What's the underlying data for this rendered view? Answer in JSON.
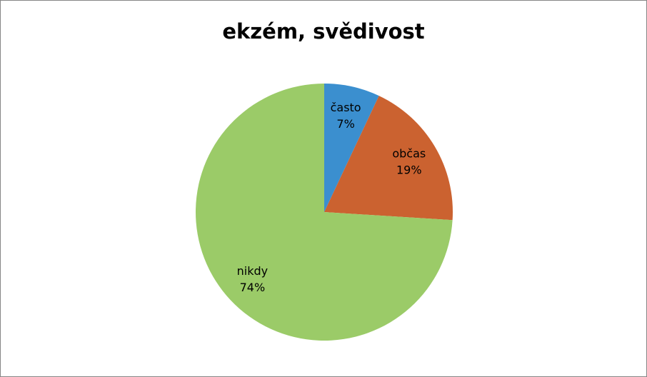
{
  "chart_data": {
    "type": "pie",
    "title": "ekzém, svědivost",
    "categories": [
      "často",
      "občas",
      "nikdy"
    ],
    "values": [
      7,
      19,
      74
    ],
    "value_labels": [
      "7%",
      "19%",
      "74%"
    ],
    "colors": [
      "#3b8fcf",
      "#cb6230",
      "#9bcb68"
    ]
  }
}
